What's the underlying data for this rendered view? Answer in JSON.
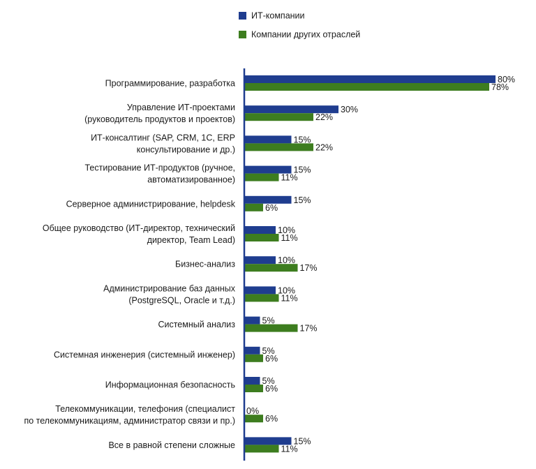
{
  "chart_data": {
    "type": "bar",
    "orientation": "horizontal",
    "legend_position": "top",
    "grid": false,
    "xlim": [
      0,
      100
    ],
    "categories": [
      "Программирование, разработка",
      "Управление ИТ-проектами\n(руководитель продуктов и проектов)",
      "ИТ-консалтинг (SAP, CRM, 1С, ERP\nконсультирование и др.)",
      "Тестирование ИТ-продуктов (ручное,\nавтоматизированное)",
      "Серверное администрирование, helpdesk",
      "Общее руководство (ИТ-директор, технический\nдиректор, Team Lead)",
      "Бизнес-анализ",
      "Администрирование баз данных\n(PostgreSQL, Oracle и т.д.)",
      "Системный анализ",
      "Системная инженерия (системный инженер)",
      "Информационная безопасность",
      "Телекоммуникации, телефония (специалист\nпо телекоммуникациям, администратор связи и пр.)",
      "Все в равной степени сложные"
    ],
    "series": [
      {
        "name": "ИТ-компании",
        "color": "#1f3d8f",
        "values": [
          80,
          30,
          15,
          15,
          15,
          10,
          10,
          10,
          5,
          5,
          5,
          0,
          15
        ],
        "labels": [
          "80%",
          "30%",
          "15%",
          "15%",
          "15%",
          "10%",
          "10%",
          "10%",
          "5%",
          "5%",
          "5%",
          "0%",
          "15%"
        ]
      },
      {
        "name": "Компании других отраслей",
        "color": "#3d7d1f",
        "values": [
          78,
          22,
          22,
          11,
          6,
          11,
          17,
          11,
          17,
          6,
          6,
          6,
          11
        ],
        "labels": [
          "78%",
          "22%",
          "22%",
          "11%",
          "6%",
          "11%",
          "17%",
          "11%",
          "17%",
          "6%",
          "6%",
          "6%",
          "11%"
        ]
      }
    ],
    "axis_color": "#1f3d8f"
  }
}
